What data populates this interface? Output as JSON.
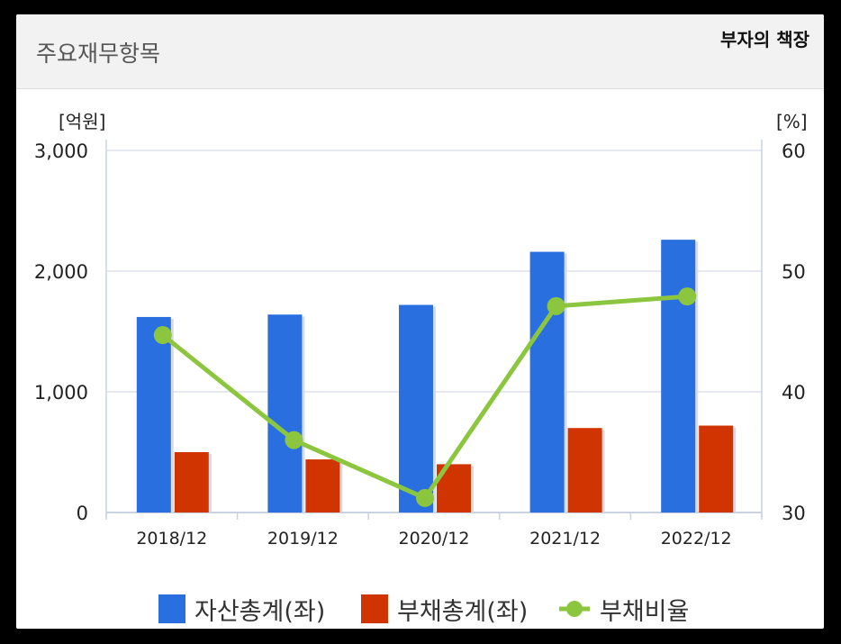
{
  "header": {
    "title": "주요재무항목",
    "watermark": "부자의 책장"
  },
  "colors": {
    "assets": "#2A6FE0",
    "liabilities": "#D03400",
    "ratio": "#8CC63F",
    "grid": "#DDE2EA",
    "axis": "#C8D2E0"
  },
  "chart_data": {
    "type": "bar",
    "categories": [
      "2018/12",
      "2019/12",
      "2020/12",
      "2021/12",
      "2022/12"
    ],
    "y_left": {
      "unit_label": "[억원]",
      "ylim": [
        0,
        3000
      ],
      "ticks": [
        0,
        1000,
        2000,
        3000
      ],
      "tick_labels": [
        "0",
        "1,000",
        "2,000",
        "3,000"
      ]
    },
    "y_right": {
      "unit_label": "[%]",
      "ylim": [
        30,
        60
      ],
      "ticks": [
        30,
        40,
        50,
        60
      ],
      "tick_labels": [
        "30",
        "40",
        "50",
        "60"
      ]
    },
    "series": [
      {
        "name": "자산총계(좌)",
        "type": "bar",
        "axis": "left",
        "values": [
          1620,
          1640,
          1720,
          2160,
          2260
        ]
      },
      {
        "name": "부채총계(좌)",
        "type": "bar",
        "axis": "left",
        "values": [
          500,
          440,
          400,
          700,
          720
        ]
      },
      {
        "name": "부채비율",
        "type": "line",
        "axis": "right",
        "values": [
          44.7,
          36.0,
          31.2,
          47.1,
          47.9
        ]
      }
    ],
    "grid": true,
    "legend_position": "bottom"
  }
}
